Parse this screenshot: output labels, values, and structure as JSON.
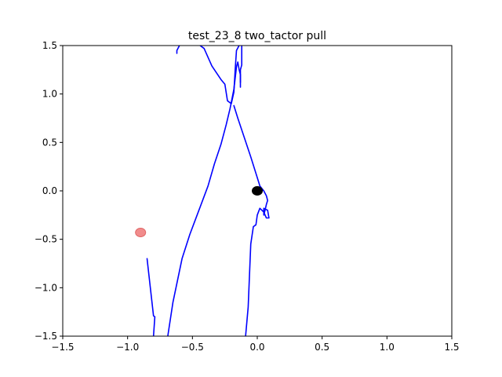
{
  "chart_data": {
    "type": "line",
    "title": "test_23_8 two_tactor pull",
    "xlabel": "",
    "ylabel": "",
    "xlim": [
      -1.5,
      1.5
    ],
    "ylim": [
      -1.5,
      1.5
    ],
    "grid": false,
    "xticks": [
      -1.5,
      -1.0,
      -0.5,
      0.0,
      0.5,
      1.0,
      1.5
    ],
    "yticks": [
      -1.5,
      -1.0,
      -0.5,
      0.0,
      0.5,
      1.0,
      1.5
    ],
    "xtick_labels": [
      "−1.5",
      "−1.0",
      "−0.5",
      "0.0",
      "0.5",
      "1.0",
      "1.5"
    ],
    "ytick_labels": [
      "−1.5",
      "−1.0",
      "−0.5",
      "0.0",
      "0.5",
      "1.0",
      "1.5"
    ],
    "line_color": "#0000ff",
    "series": [
      {
        "color": "#0000ff",
        "x": [
          -0.85,
          -0.8,
          -0.79,
          -0.8
        ],
        "y": [
          -0.7,
          -1.29,
          -1.3,
          -1.5
        ]
      },
      {
        "color": "#0000ff",
        "x": [
          -0.69,
          -0.65,
          -0.58,
          -0.52,
          -0.45,
          -0.38,
          -0.33,
          -0.28,
          -0.24,
          -0.21,
          -0.18,
          -0.16,
          -0.15,
          -0.14,
          -0.13,
          -0.13
        ],
        "y": [
          -1.5,
          -1.15,
          -0.7,
          -0.45,
          -0.2,
          0.05,
          0.28,
          0.48,
          0.68,
          0.85,
          1.05,
          1.28,
          1.33,
          1.25,
          1.2,
          1.07
        ]
      },
      {
        "color": "#0000ff",
        "x": [
          -0.62,
          -0.62,
          -0.6,
          -0.58,
          -0.52,
          -0.45,
          -0.41,
          -0.35,
          -0.28,
          -0.25,
          -0.23,
          -0.2,
          -0.18,
          -0.17,
          -0.16,
          -0.12,
          -0.12,
          -0.13,
          -0.13,
          -0.13
        ],
        "y": [
          1.42,
          1.45,
          1.5,
          1.52,
          1.52,
          1.51,
          1.47,
          1.29,
          1.15,
          1.1,
          0.93,
          0.9,
          1.02,
          1.26,
          1.45,
          1.55,
          1.3,
          1.25,
          1.18,
          1.12
        ]
      },
      {
        "color": "#0000ff",
        "x": [
          -0.18,
          -0.15,
          -0.1,
          -0.05,
          -0.01,
          0.02,
          0.05,
          0.07,
          0.08,
          0.07,
          0.06,
          0.05,
          0.05,
          0.08,
          0.09,
          0.07,
          0.05,
          0.02,
          0.0,
          -0.01,
          -0.03,
          -0.05,
          -0.07,
          -0.09
        ],
        "y": [
          0.88,
          0.75,
          0.55,
          0.35,
          0.18,
          0.05,
          0.0,
          -0.05,
          -0.1,
          -0.14,
          -0.2,
          -0.25,
          -0.18,
          -0.2,
          -0.28,
          -0.28,
          -0.22,
          -0.18,
          -0.25,
          -0.35,
          -0.37,
          -0.55,
          -1.2,
          -1.5
        ]
      }
    ],
    "markers": [
      {
        "x": -0.9,
        "y": -0.43,
        "color": "#f08080",
        "edge_color": "#e06666"
      },
      {
        "x": 0.0,
        "y": 0.0,
        "color": "#000000",
        "edge_color": "#000000"
      }
    ]
  }
}
